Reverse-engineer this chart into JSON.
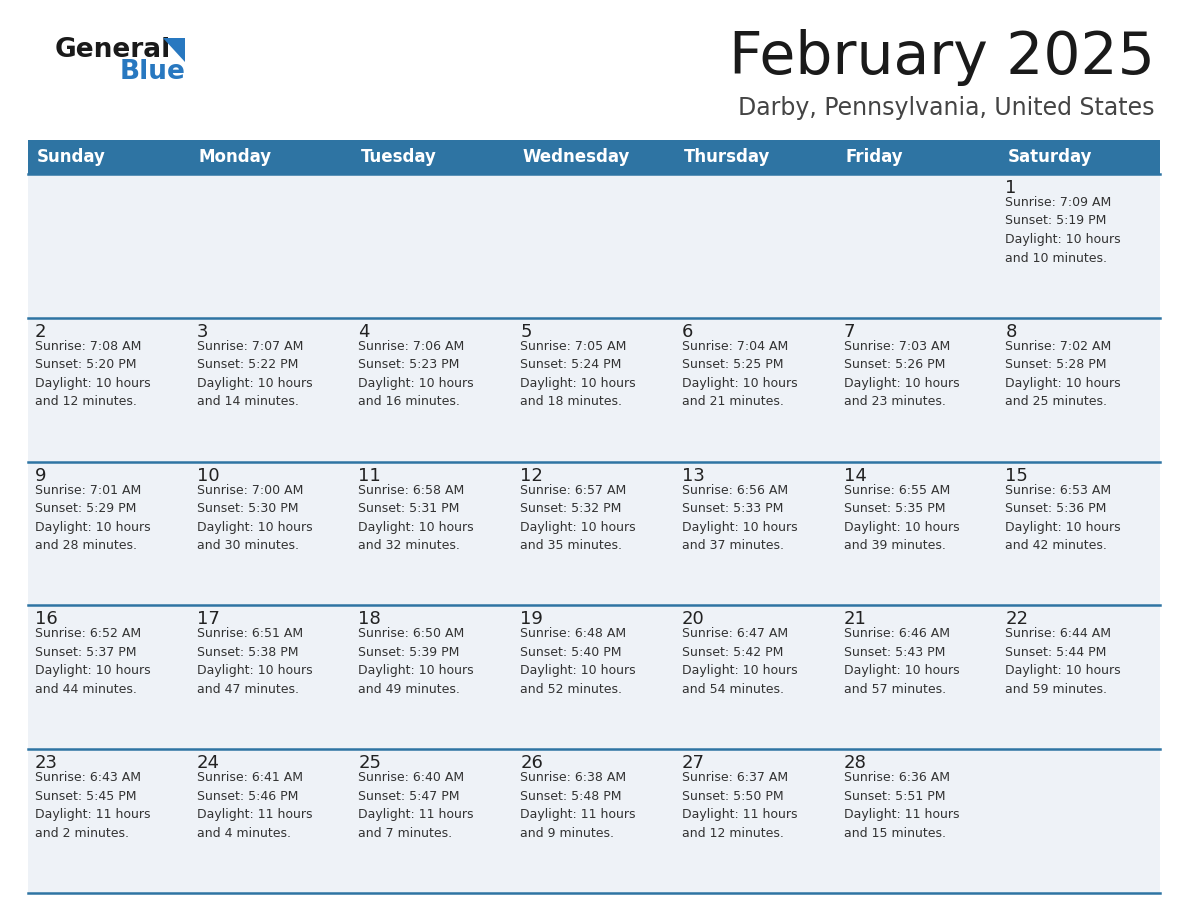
{
  "title": "February 2025",
  "subtitle": "Darby, Pennsylvania, United States",
  "header_color": "#2e74a3",
  "header_text_color": "#ffffff",
  "cell_bg_color": "#eef2f7",
  "border_color": "#2e74a3",
  "text_color": "#222222",
  "info_text_color": "#333333",
  "days_of_week": [
    "Sunday",
    "Monday",
    "Tuesday",
    "Wednesday",
    "Thursday",
    "Friday",
    "Saturday"
  ],
  "weeks": [
    [
      {
        "day": null,
        "info": null
      },
      {
        "day": null,
        "info": null
      },
      {
        "day": null,
        "info": null
      },
      {
        "day": null,
        "info": null
      },
      {
        "day": null,
        "info": null
      },
      {
        "day": null,
        "info": null
      },
      {
        "day": 1,
        "info": "Sunrise: 7:09 AM\nSunset: 5:19 PM\nDaylight: 10 hours\nand 10 minutes."
      }
    ],
    [
      {
        "day": 2,
        "info": "Sunrise: 7:08 AM\nSunset: 5:20 PM\nDaylight: 10 hours\nand 12 minutes."
      },
      {
        "day": 3,
        "info": "Sunrise: 7:07 AM\nSunset: 5:22 PM\nDaylight: 10 hours\nand 14 minutes."
      },
      {
        "day": 4,
        "info": "Sunrise: 7:06 AM\nSunset: 5:23 PM\nDaylight: 10 hours\nand 16 minutes."
      },
      {
        "day": 5,
        "info": "Sunrise: 7:05 AM\nSunset: 5:24 PM\nDaylight: 10 hours\nand 18 minutes."
      },
      {
        "day": 6,
        "info": "Sunrise: 7:04 AM\nSunset: 5:25 PM\nDaylight: 10 hours\nand 21 minutes."
      },
      {
        "day": 7,
        "info": "Sunrise: 7:03 AM\nSunset: 5:26 PM\nDaylight: 10 hours\nand 23 minutes."
      },
      {
        "day": 8,
        "info": "Sunrise: 7:02 AM\nSunset: 5:28 PM\nDaylight: 10 hours\nand 25 minutes."
      }
    ],
    [
      {
        "day": 9,
        "info": "Sunrise: 7:01 AM\nSunset: 5:29 PM\nDaylight: 10 hours\nand 28 minutes."
      },
      {
        "day": 10,
        "info": "Sunrise: 7:00 AM\nSunset: 5:30 PM\nDaylight: 10 hours\nand 30 minutes."
      },
      {
        "day": 11,
        "info": "Sunrise: 6:58 AM\nSunset: 5:31 PM\nDaylight: 10 hours\nand 32 minutes."
      },
      {
        "day": 12,
        "info": "Sunrise: 6:57 AM\nSunset: 5:32 PM\nDaylight: 10 hours\nand 35 minutes."
      },
      {
        "day": 13,
        "info": "Sunrise: 6:56 AM\nSunset: 5:33 PM\nDaylight: 10 hours\nand 37 minutes."
      },
      {
        "day": 14,
        "info": "Sunrise: 6:55 AM\nSunset: 5:35 PM\nDaylight: 10 hours\nand 39 minutes."
      },
      {
        "day": 15,
        "info": "Sunrise: 6:53 AM\nSunset: 5:36 PM\nDaylight: 10 hours\nand 42 minutes."
      }
    ],
    [
      {
        "day": 16,
        "info": "Sunrise: 6:52 AM\nSunset: 5:37 PM\nDaylight: 10 hours\nand 44 minutes."
      },
      {
        "day": 17,
        "info": "Sunrise: 6:51 AM\nSunset: 5:38 PM\nDaylight: 10 hours\nand 47 minutes."
      },
      {
        "day": 18,
        "info": "Sunrise: 6:50 AM\nSunset: 5:39 PM\nDaylight: 10 hours\nand 49 minutes."
      },
      {
        "day": 19,
        "info": "Sunrise: 6:48 AM\nSunset: 5:40 PM\nDaylight: 10 hours\nand 52 minutes."
      },
      {
        "day": 20,
        "info": "Sunrise: 6:47 AM\nSunset: 5:42 PM\nDaylight: 10 hours\nand 54 minutes."
      },
      {
        "day": 21,
        "info": "Sunrise: 6:46 AM\nSunset: 5:43 PM\nDaylight: 10 hours\nand 57 minutes."
      },
      {
        "day": 22,
        "info": "Sunrise: 6:44 AM\nSunset: 5:44 PM\nDaylight: 10 hours\nand 59 minutes."
      }
    ],
    [
      {
        "day": 23,
        "info": "Sunrise: 6:43 AM\nSunset: 5:45 PM\nDaylight: 11 hours\nand 2 minutes."
      },
      {
        "day": 24,
        "info": "Sunrise: 6:41 AM\nSunset: 5:46 PM\nDaylight: 11 hours\nand 4 minutes."
      },
      {
        "day": 25,
        "info": "Sunrise: 6:40 AM\nSunset: 5:47 PM\nDaylight: 11 hours\nand 7 minutes."
      },
      {
        "day": 26,
        "info": "Sunrise: 6:38 AM\nSunset: 5:48 PM\nDaylight: 11 hours\nand 9 minutes."
      },
      {
        "day": 27,
        "info": "Sunrise: 6:37 AM\nSunset: 5:50 PM\nDaylight: 11 hours\nand 12 minutes."
      },
      {
        "day": 28,
        "info": "Sunrise: 6:36 AM\nSunset: 5:51 PM\nDaylight: 11 hours\nand 15 minutes."
      },
      {
        "day": null,
        "info": null
      }
    ]
  ],
  "logo_general_color": "#1a1a1a",
  "logo_blue_color": "#2878c0",
  "logo_triangle_color": "#2878c0",
  "title_fontsize": 42,
  "subtitle_fontsize": 17,
  "header_fontsize": 12,
  "day_num_fontsize": 13,
  "info_fontsize": 9
}
